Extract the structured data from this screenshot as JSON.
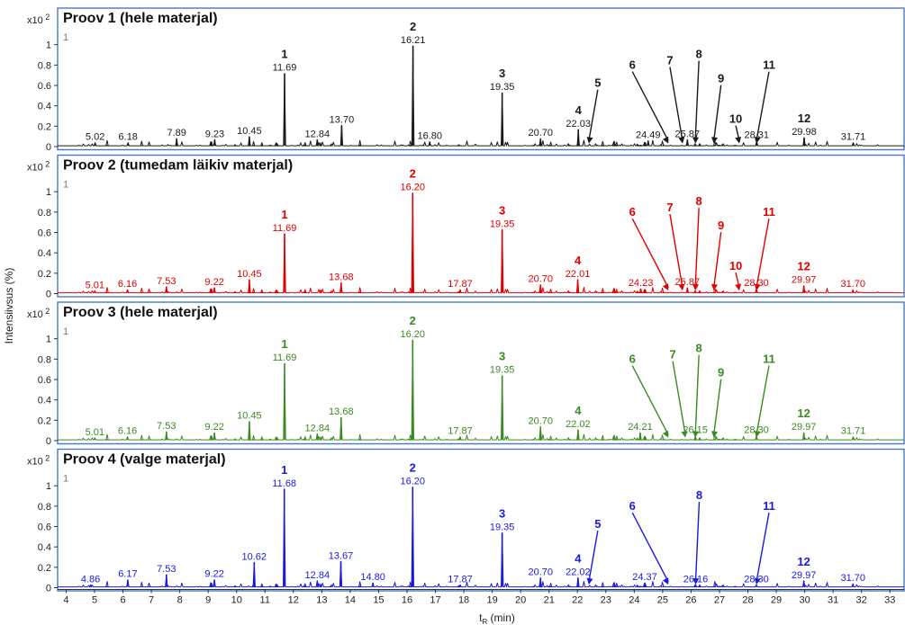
{
  "chart_data": {
    "type": "line",
    "ylabel": "Intensiivsus (%)",
    "xlabel_main": "t",
    "xlabel_sub": "R",
    "xlabel_unit": " (min)",
    "y_multiplier": "x10",
    "y_multiplier_exp": "2",
    "trace_index": "1",
    "xlim": [
      3.7,
      33.5
    ],
    "ylim": [
      0,
      1.05
    ],
    "x_ticks": [
      4,
      5,
      6,
      7,
      8,
      9,
      10,
      11,
      12,
      13,
      14,
      15,
      16,
      17,
      18,
      19,
      20,
      21,
      22,
      23,
      24,
      25,
      26,
      27,
      28,
      29,
      30,
      31,
      32,
      33
    ],
    "y_ticks": [
      "0",
      "0.2",
      "0.4",
      "0.6",
      "0.8",
      "1"
    ],
    "panels": [
      {
        "title": "Proov 1 (hele materjal)",
        "color": "#1a1a1a",
        "peaks": [
          {
            "x": 5.02,
            "y": 0.03,
            "label": "5.02"
          },
          {
            "x": 6.18,
            "y": 0.03,
            "label": "6.18"
          },
          {
            "x": 7.89,
            "y": 0.07,
            "label": "7.89"
          },
          {
            "x": 9.23,
            "y": 0.06,
            "label": "9.23"
          },
          {
            "x": 10.45,
            "y": 0.09,
            "label": "10.45"
          },
          {
            "x": 11.69,
            "y": 0.71,
            "label": "11.69",
            "id": "1"
          },
          {
            "x": 12.84,
            "y": 0.06,
            "label": "12.84"
          },
          {
            "x": 13.7,
            "y": 0.2,
            "label": "13.70"
          },
          {
            "x": 16.21,
            "y": 0.98,
            "label": "16.21",
            "id": "2"
          },
          {
            "x": 16.8,
            "y": 0.04,
            "label": "16.80"
          },
          {
            "x": 19.35,
            "y": 0.52,
            "label": "19.35",
            "id": "3"
          },
          {
            "x": 20.7,
            "y": 0.07,
            "label": "20.70"
          },
          {
            "x": 22.03,
            "y": 0.16,
            "label": "22.03",
            "id": "4"
          },
          {
            "x": 24.49,
            "y": 0.05,
            "label": "24.49"
          },
          {
            "x": 25.87,
            "y": 0.06,
            "label": "25.87"
          },
          {
            "x": 28.31,
            "y": 0.05,
            "label": "28.31"
          },
          {
            "x": 29.98,
            "y": 0.08,
            "label": "29.98"
          },
          {
            "x": 31.71,
            "y": 0.03,
            "label": "31.71"
          }
        ],
        "annotations": [
          {
            "id": "5",
            "tip": 22.4
          },
          {
            "id": "6",
            "tip": 25.2
          },
          {
            "id": "7",
            "tip": 25.7
          },
          {
            "id": "8",
            "tip": 26.15
          },
          {
            "id": "9",
            "tip": 26.8
          },
          {
            "id": "10",
            "tip": 27.7
          },
          {
            "id": "11",
            "tip": 28.3
          },
          {
            "id": "12",
            "tip": 29.98
          }
        ]
      },
      {
        "title": "Proov 2 (tumedam läikiv materjal)",
        "color": "#e00000",
        "peaks": [
          {
            "x": 5.01,
            "y": 0.02,
            "label": "5.01"
          },
          {
            "x": 6.16,
            "y": 0.03,
            "label": "6.16"
          },
          {
            "x": 7.53,
            "y": 0.06,
            "label": "7.53"
          },
          {
            "x": 9.22,
            "y": 0.05,
            "label": "9.22"
          },
          {
            "x": 10.45,
            "y": 0.13,
            "label": "10.45"
          },
          {
            "x": 11.69,
            "y": 0.58,
            "label": "11.69",
            "id": "1"
          },
          {
            "x": 13.68,
            "y": 0.1,
            "label": "13.68"
          },
          {
            "x": 16.2,
            "y": 0.98,
            "label": "16.20",
            "id": "2"
          },
          {
            "x": 17.87,
            "y": 0.03,
            "label": "17.87"
          },
          {
            "x": 19.35,
            "y": 0.62,
            "label": "19.35",
            "id": "3"
          },
          {
            "x": 20.7,
            "y": 0.08,
            "label": "20.70"
          },
          {
            "x": 22.01,
            "y": 0.13,
            "label": "22.01",
            "id": "4"
          },
          {
            "x": 24.23,
            "y": 0.04,
            "label": "24.23"
          },
          {
            "x": 25.87,
            "y": 0.05,
            "label": "25.87"
          },
          {
            "x": 28.3,
            "y": 0.04,
            "label": "28.30"
          },
          {
            "x": 29.97,
            "y": 0.07,
            "label": "29.97"
          },
          {
            "x": 31.7,
            "y": 0.03,
            "label": "31.70"
          }
        ],
        "annotations": [
          {
            "id": "6",
            "tip": 25.2
          },
          {
            "id": "7",
            "tip": 25.7
          },
          {
            "id": "8",
            "tip": 26.15
          },
          {
            "id": "9",
            "tip": 26.8
          },
          {
            "id": "10",
            "tip": 27.7
          },
          {
            "id": "11",
            "tip": 28.3
          },
          {
            "id": "12",
            "tip": 29.97
          }
        ]
      },
      {
        "title": "Proov 3 (hele materjal)",
        "color": "#3a8a22",
        "peaks": [
          {
            "x": 5.01,
            "y": 0.02,
            "label": "5.01"
          },
          {
            "x": 6.16,
            "y": 0.03,
            "label": "6.16"
          },
          {
            "x": 7.53,
            "y": 0.08,
            "label": "7.53"
          },
          {
            "x": 9.22,
            "y": 0.07,
            "label": "9.22"
          },
          {
            "x": 10.45,
            "y": 0.18,
            "label": "10.45"
          },
          {
            "x": 11.69,
            "y": 0.75,
            "label": "11.69",
            "id": "1"
          },
          {
            "x": 12.84,
            "y": 0.06,
            "label": "12.84"
          },
          {
            "x": 13.68,
            "y": 0.22,
            "label": "13.68"
          },
          {
            "x": 16.2,
            "y": 0.98,
            "label": "16.20",
            "id": "2"
          },
          {
            "x": 17.87,
            "y": 0.03,
            "label": "17.87"
          },
          {
            "x": 19.35,
            "y": 0.63,
            "label": "19.35",
            "id": "3"
          },
          {
            "x": 20.7,
            "y": 0.13,
            "label": "20.70"
          },
          {
            "x": 22.02,
            "y": 0.1,
            "label": "22.02",
            "id": "4"
          },
          {
            "x": 24.21,
            "y": 0.07,
            "label": "24.21"
          },
          {
            "x": 26.15,
            "y": 0.04,
            "label": "26.15"
          },
          {
            "x": 28.3,
            "y": 0.04,
            "label": "28.30"
          },
          {
            "x": 29.97,
            "y": 0.07,
            "label": "29.97"
          },
          {
            "x": 31.71,
            "y": 0.03,
            "label": "31.71"
          }
        ],
        "annotations": [
          {
            "id": "6",
            "tip": 25.2
          },
          {
            "id": "7",
            "tip": 25.8
          },
          {
            "id": "8",
            "tip": 26.15
          },
          {
            "id": "9",
            "tip": 26.8
          },
          {
            "id": "11",
            "tip": 28.3
          },
          {
            "id": "12",
            "tip": 29.97
          }
        ]
      },
      {
        "title": "Proov 4 (valge materjal)",
        "color": "#1a1ae0",
        "peaks": [
          {
            "x": 4.86,
            "y": 0.02,
            "label": "4.86"
          },
          {
            "x": 6.17,
            "y": 0.07,
            "label": "6.17"
          },
          {
            "x": 7.53,
            "y": 0.12,
            "label": "7.53"
          },
          {
            "x": 9.22,
            "y": 0.07,
            "label": "9.22"
          },
          {
            "x": 10.62,
            "y": 0.24,
            "label": "10.62"
          },
          {
            "x": 11.68,
            "y": 0.96,
            "label": "11.68",
            "id": "1"
          },
          {
            "x": 12.84,
            "y": 0.06,
            "label": "12.84"
          },
          {
            "x": 13.67,
            "y": 0.25,
            "label": "13.67"
          },
          {
            "x": 14.8,
            "y": 0.04,
            "label": "14.80"
          },
          {
            "x": 16.2,
            "y": 0.98,
            "label": "16.20",
            "id": "2"
          },
          {
            "x": 17.87,
            "y": 0.02,
            "label": "17.87"
          },
          {
            "x": 19.35,
            "y": 0.53,
            "label": "19.35",
            "id": "3"
          },
          {
            "x": 20.7,
            "y": 0.09,
            "label": "20.70"
          },
          {
            "x": 22.02,
            "y": 0.09,
            "label": "22.02",
            "id": "4"
          },
          {
            "x": 24.37,
            "y": 0.04,
            "label": "24.37"
          },
          {
            "x": 26.16,
            "y": 0.02,
            "label": "26.16"
          },
          {
            "x": 28.3,
            "y": 0.02,
            "label": "28.30"
          },
          {
            "x": 29.97,
            "y": 0.06,
            "label": "29.97"
          },
          {
            "x": 31.7,
            "y": 0.03,
            "label": "31.70"
          }
        ],
        "annotations": [
          {
            "id": "5",
            "tip": 22.4
          },
          {
            "id": "6",
            "tip": 25.2
          },
          {
            "id": "8",
            "tip": 26.16
          },
          {
            "id": "11",
            "tip": 28.3
          },
          {
            "id": "12",
            "tip": 29.97
          }
        ]
      }
    ]
  }
}
